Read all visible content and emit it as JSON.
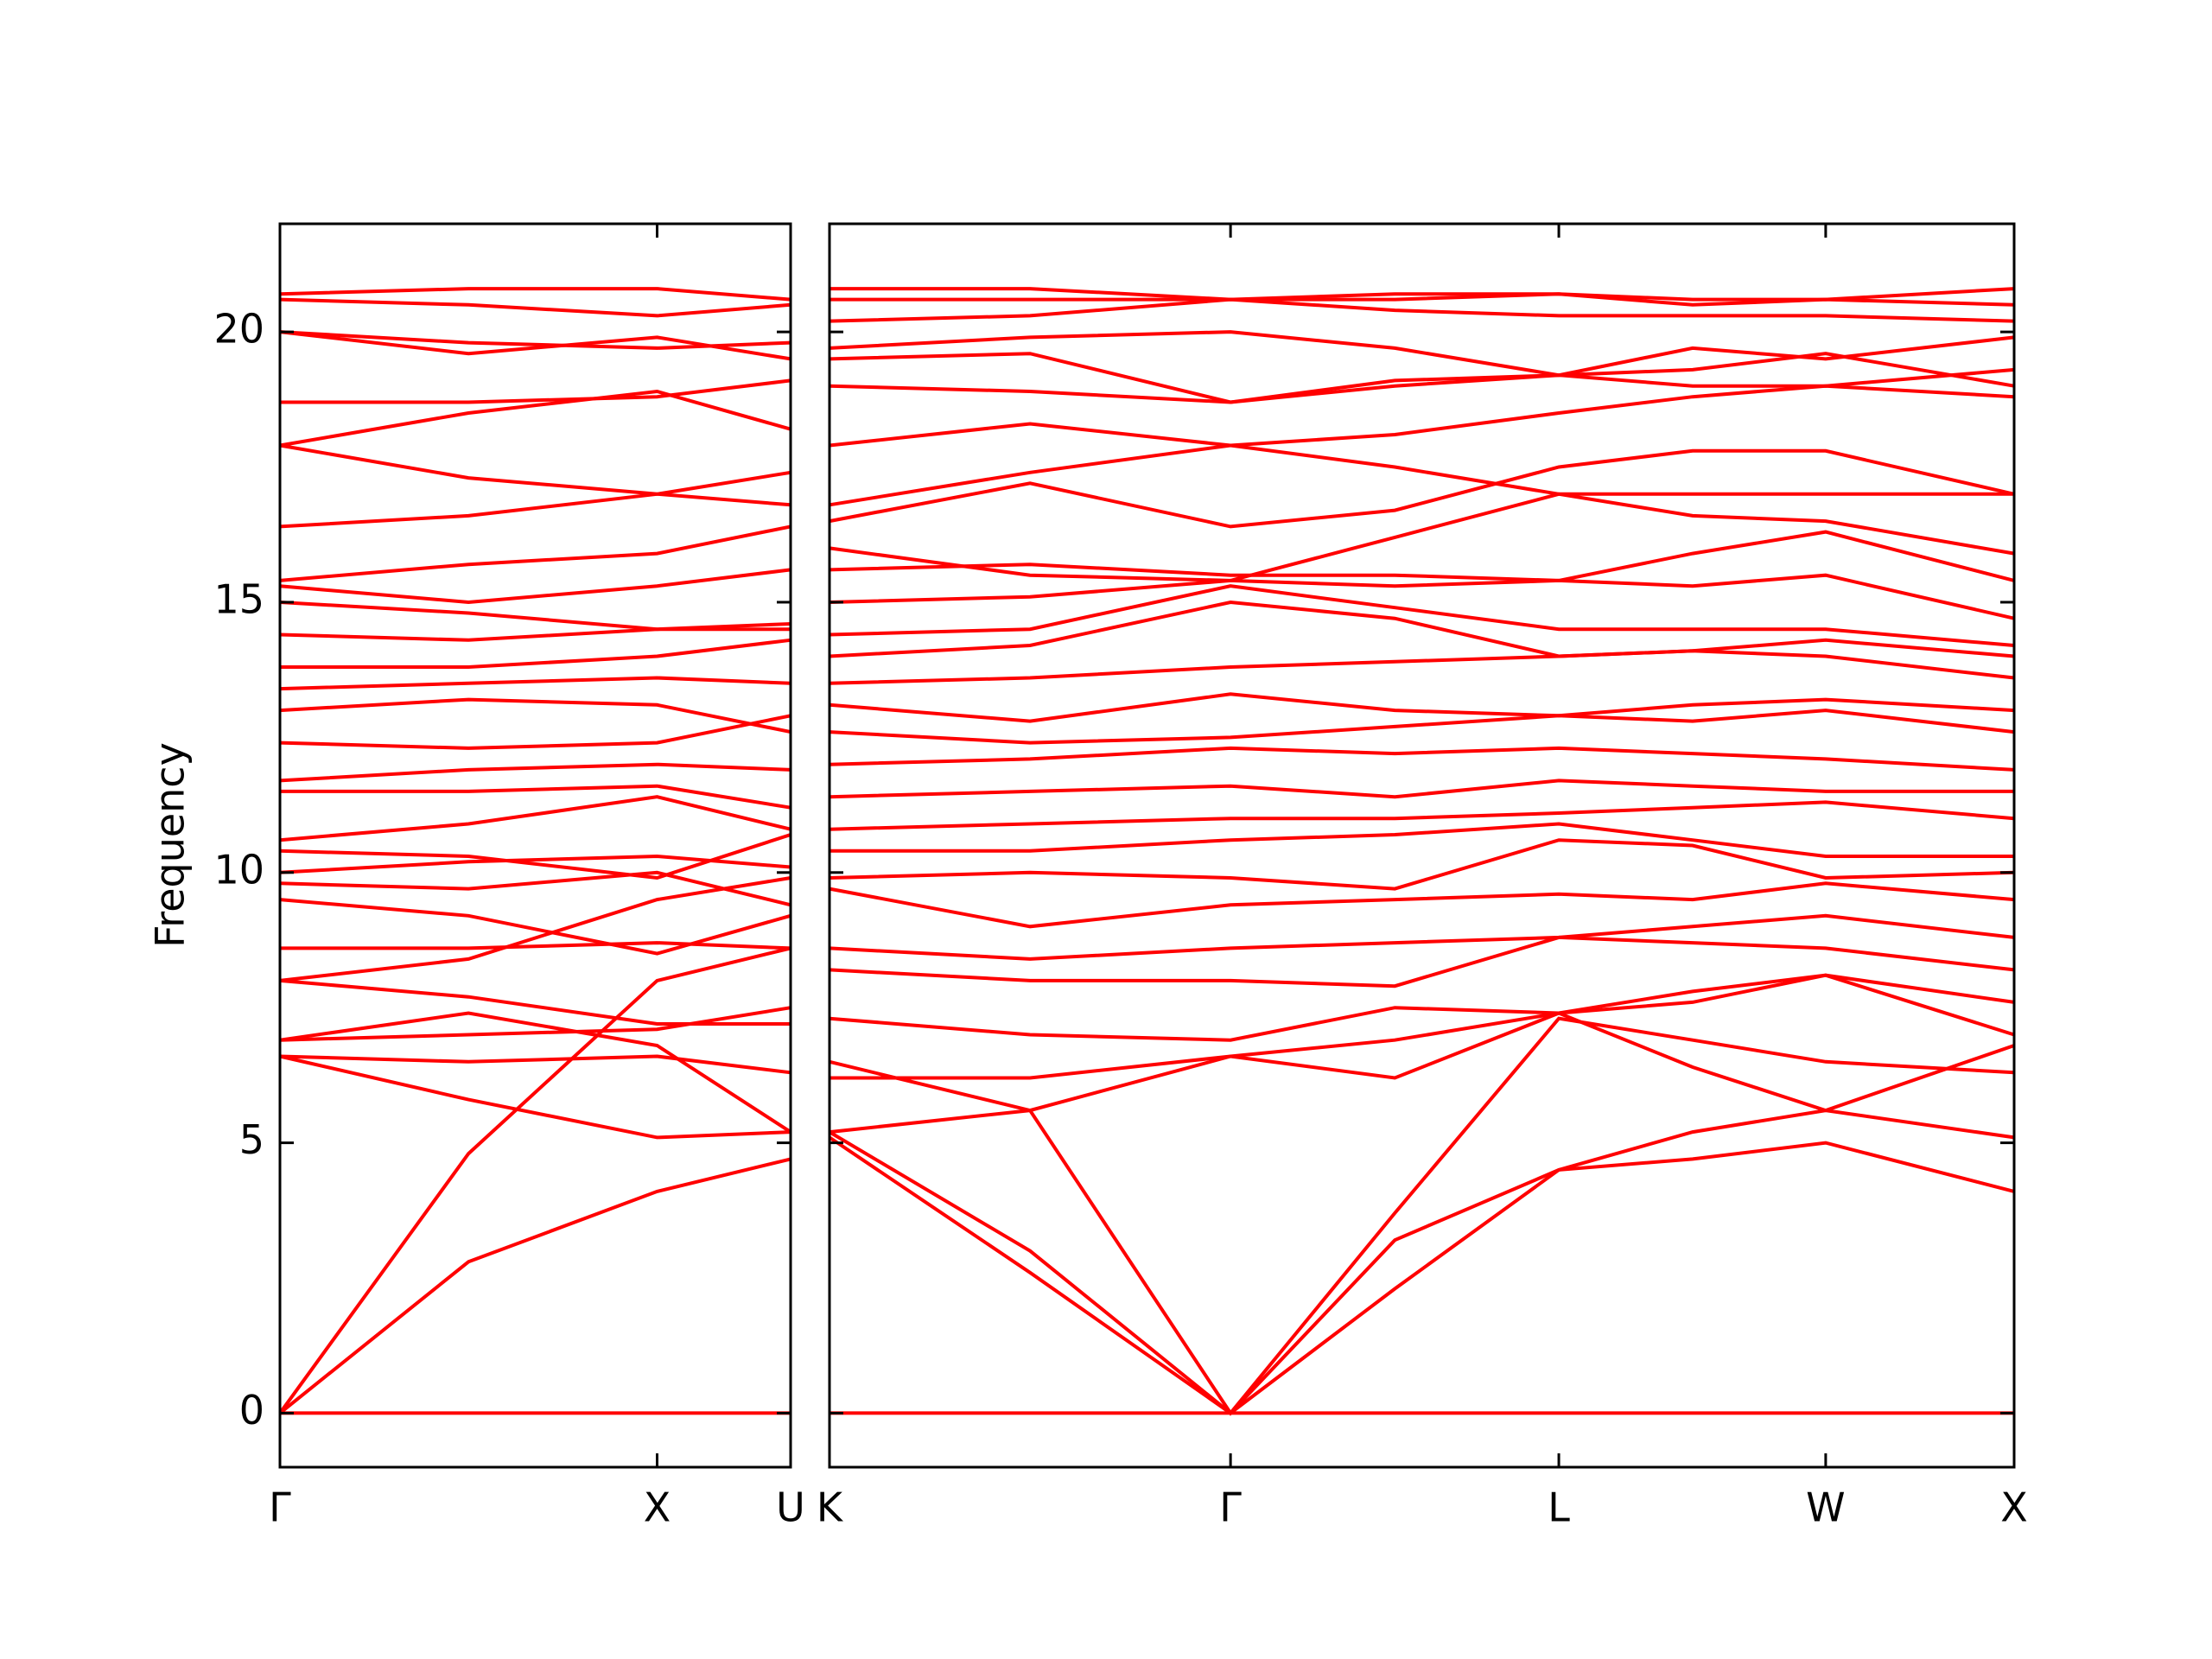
{
  "chart_data": [
    {
      "type": "line",
      "ylabel": "Frequency",
      "color": "#ff0000",
      "ylim": [
        -1,
        22
      ],
      "yticks": [
        0,
        5,
        10,
        15,
        20
      ],
      "xlim": [
        0,
        1.354
      ],
      "xticks": [
        {
          "value": 0,
          "label": "Γ"
        },
        {
          "value": 1,
          "label": "X"
        },
        {
          "value": 1.354,
          "label": "U"
        }
      ],
      "x": [
        0,
        0.5,
        1,
        1.354
      ],
      "series": [
        {
          "values": [
            0,
            0,
            0,
            0
          ]
        },
        {
          "values": [
            0,
            4.8,
            8.0,
            8.6
          ]
        },
        {
          "values": [
            0,
            2.8,
            4.1,
            4.7
          ]
        },
        {
          "values": [
            6.6,
            5.8,
            5.1,
            5.2
          ]
        },
        {
          "values": [
            6.6,
            6.5,
            6.6,
            6.3
          ]
        },
        {
          "values": [
            6.9,
            7.0,
            7.1,
            7.5
          ]
        },
        {
          "values": [
            6.9,
            7.4,
            6.8,
            5.2
          ]
        },
        {
          "values": [
            8.0,
            7.7,
            7.2,
            7.2
          ]
        },
        {
          "values": [
            8.0,
            8.4,
            9.5,
            9.9
          ]
        },
        {
          "values": [
            8.6,
            8.6,
            8.7,
            8.6
          ]
        },
        {
          "values": [
            9.5,
            9.2,
            8.5,
            9.2
          ]
        },
        {
          "values": [
            9.8,
            9.7,
            10.0,
            9.4
          ]
        },
        {
          "values": [
            10.0,
            10.2,
            10.3,
            10.1
          ]
        },
        {
          "values": [
            10.4,
            10.3,
            9.9,
            10.7
          ]
        },
        {
          "values": [
            10.6,
            10.9,
            11.4,
            10.8
          ]
        },
        {
          "values": [
            11.5,
            11.5,
            11.6,
            11.2
          ]
        },
        {
          "values": [
            11.7,
            11.9,
            12.0,
            11.9
          ]
        },
        {
          "values": [
            12.4,
            12.3,
            12.4,
            12.9
          ]
        },
        {
          "values": [
            13.0,
            13.2,
            13.1,
            12.6
          ]
        },
        {
          "values": [
            13.4,
            13.5,
            13.6,
            13.5
          ]
        },
        {
          "values": [
            13.8,
            13.8,
            14.0,
            14.3
          ]
        },
        {
          "values": [
            14.4,
            14.3,
            14.5,
            14.6
          ]
        },
        {
          "values": [
            15.0,
            14.8,
            14.5,
            14.5
          ]
        },
        {
          "values": [
            15.3,
            15.0,
            15.3,
            15.6
          ]
        },
        {
          "values": [
            15.4,
            15.7,
            15.9,
            16.4
          ]
        },
        {
          "values": [
            16.4,
            16.6,
            17.0,
            17.4
          ]
        },
        {
          "values": [
            17.9,
            17.3,
            17.0,
            16.8
          ]
        },
        {
          "values": [
            17.9,
            18.5,
            18.9,
            18.2
          ]
        },
        {
          "values": [
            18.7,
            18.7,
            18.8,
            19.1
          ]
        },
        {
          "values": [
            20.0,
            19.6,
            19.9,
            19.5
          ]
        },
        {
          "values": [
            20.0,
            19.8,
            19.7,
            19.8
          ]
        },
        {
          "values": [
            20.6,
            20.5,
            20.3,
            20.5
          ]
        },
        {
          "values": [
            20.7,
            20.8,
            20.8,
            20.6
          ]
        }
      ]
    },
    {
      "type": "line",
      "color": "#ff0000",
      "ylim": [
        -1,
        22
      ],
      "xlim": [
        0,
        3.143
      ],
      "xticks": [
        {
          "value": 0,
          "label": "K"
        },
        {
          "value": 1.064,
          "label": "Γ"
        },
        {
          "value": 1.935,
          "label": "L"
        },
        {
          "value": 2.643,
          "label": "W"
        },
        {
          "value": 3.143,
          "label": "X"
        }
      ],
      "x": [
        0,
        0.532,
        1.064,
        1.5,
        1.935,
        2.29,
        2.643,
        3.143
      ],
      "series": [
        {
          "values": [
            0,
            0,
            0,
            0,
            0,
            0,
            0,
            0
          ]
        },
        {
          "values": [
            5.1,
            2.6,
            0,
            2.3,
            4.5,
            4.7,
            5.0,
            4.1
          ]
        },
        {
          "values": [
            5.2,
            3.0,
            0,
            3.2,
            4.5,
            5.2,
            5.6,
            5.1
          ]
        },
        {
          "values": [
            6.5,
            5.6,
            0,
            3.7,
            7.3,
            6.9,
            6.5,
            6.3
          ]
        },
        {
          "values": [
            5.2,
            5.6,
            6.6,
            6.2,
            7.4,
            6.4,
            5.6,
            6.8
          ]
        },
        {
          "values": [
            6.2,
            6.2,
            6.6,
            6.9,
            7.4,
            7.6,
            8.1,
            7.0
          ]
        },
        {
          "values": [
            7.3,
            7.0,
            6.9,
            7.5,
            7.4,
            7.8,
            8.1,
            7.6
          ]
        },
        {
          "values": [
            8.2,
            8.0,
            8.0,
            7.9,
            8.8,
            8.7,
            8.6,
            8.2
          ]
        },
        {
          "values": [
            8.6,
            8.4,
            8.6,
            8.7,
            8.8,
            9.0,
            9.2,
            8.8
          ]
        },
        {
          "values": [
            9.7,
            9.0,
            9.4,
            9.5,
            9.6,
            9.5,
            9.8,
            9.5
          ]
        },
        {
          "values": [
            9.9,
            10.0,
            9.9,
            9.7,
            10.6,
            10.5,
            9.9,
            10.0
          ]
        },
        {
          "values": [
            10.4,
            10.4,
            10.6,
            10.7,
            10.9,
            10.6,
            10.3,
            10.3
          ]
        },
        {
          "values": [
            10.8,
            10.9,
            11.0,
            11.0,
            11.1,
            11.2,
            11.3,
            11.0
          ]
        },
        {
          "values": [
            11.4,
            11.5,
            11.6,
            11.4,
            11.7,
            11.6,
            11.5,
            11.5
          ]
        },
        {
          "values": [
            12.0,
            12.1,
            12.3,
            12.2,
            12.3,
            12.2,
            12.1,
            11.9
          ]
        },
        {
          "values": [
            12.6,
            12.4,
            12.5,
            12.7,
            12.9,
            12.8,
            13.0,
            12.6
          ]
        },
        {
          "values": [
            13.1,
            12.8,
            13.3,
            13.0,
            12.9,
            13.1,
            13.2,
            13.0
          ]
        },
        {
          "values": [
            13.5,
            13.6,
            13.8,
            13.9,
            14.0,
            14.1,
            14.0,
            13.6
          ]
        },
        {
          "values": [
            14.0,
            14.2,
            15.0,
            14.7,
            14.0,
            14.1,
            14.3,
            14.0
          ]
        },
        {
          "values": [
            14.4,
            14.5,
            15.3,
            14.9,
            14.5,
            14.5,
            14.5,
            14.2
          ]
        },
        {
          "values": [
            15.0,
            15.1,
            15.4,
            15.3,
            15.4,
            15.3,
            15.5,
            14.7
          ]
        },
        {
          "values": [
            15.6,
            15.7,
            15.5,
            15.5,
            15.4,
            15.9,
            16.3,
            15.4
          ]
        },
        {
          "values": [
            16.0,
            15.5,
            15.4,
            16.2,
            17.0,
            17.0,
            17.0,
            17.0
          ]
        },
        {
          "values": [
            16.5,
            17.2,
            16.4,
            16.7,
            17.5,
            17.8,
            17.8,
            17.0
          ]
        },
        {
          "values": [
            16.8,
            17.4,
            17.9,
            17.5,
            17.0,
            16.6,
            16.5,
            15.9
          ]
        },
        {
          "values": [
            17.9,
            18.3,
            17.9,
            18.1,
            18.5,
            18.8,
            19.0,
            18.8
          ]
        },
        {
          "values": [
            19.0,
            18.9,
            18.7,
            19.0,
            19.2,
            19.3,
            19.6,
            19.0
          ]
        },
        {
          "values": [
            19.5,
            19.6,
            18.7,
            19.1,
            19.2,
            19.7,
            19.5,
            19.9
          ]
        },
        {
          "values": [
            19.7,
            19.9,
            20.0,
            19.7,
            19.2,
            19.0,
            19.0,
            19.3
          ]
        },
        {
          "values": [
            20.2,
            20.3,
            20.6,
            20.4,
            20.3,
            20.3,
            20.3,
            20.2
          ]
        },
        {
          "values": [
            20.6,
            20.6,
            20.6,
            20.6,
            20.7,
            20.6,
            20.6,
            20.8
          ]
        },
        {
          "values": [
            20.8,
            20.8,
            20.6,
            20.7,
            20.7,
            20.5,
            20.6,
            20.5
          ]
        }
      ]
    }
  ]
}
